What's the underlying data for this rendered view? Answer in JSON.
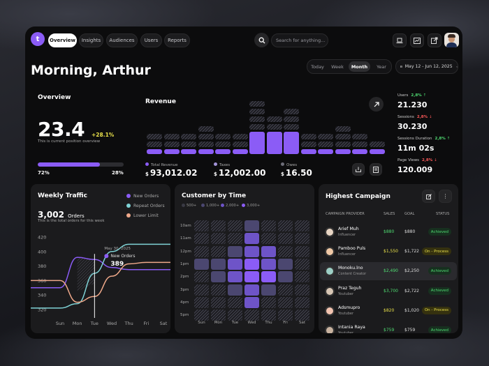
{
  "nav": {
    "logo": "t",
    "tabs": [
      "Overview",
      "Insights",
      "Audiences",
      "Users",
      "Reports"
    ],
    "search_placeholder": "Search for anything..."
  },
  "greeting": "Morning, Arthur",
  "range": {
    "options": [
      "Today",
      "Week",
      "Month",
      "Year"
    ],
    "selected": "Month",
    "dates": "May 12 - Jun 12, 2025"
  },
  "overview": {
    "title": "Overview",
    "value": "23.4",
    "change": "+28.1%",
    "caption": "This is current position overview",
    "left_pct": "72%",
    "right_pct": "28%",
    "progress": 0.72
  },
  "revenue": {
    "title": "Revenue",
    "stats": [
      {
        "label": "Total Revenue",
        "value": "93,012.02",
        "color": "#8b5cf6"
      },
      {
        "label": "Taxes",
        "value": "12,002.00",
        "color": "#a394d9"
      },
      {
        "label": "Owes",
        "value": "16.50",
        "color": "#6d6d78"
      }
    ],
    "columns": [
      [
        0,
        2,
        1
      ],
      [
        0,
        2,
        2
      ],
      [
        0,
        2,
        3
      ],
      [
        0,
        3,
        3
      ],
      [
        0,
        2,
        1
      ],
      [
        0,
        2,
        2
      ],
      [
        1,
        3,
        4
      ],
      [
        1,
        1,
        4
      ],
      [
        0,
        3,
        4
      ],
      [
        0,
        2,
        2
      ],
      [
        0,
        2,
        1
      ],
      [
        0,
        3,
        2
      ],
      [
        0,
        2,
        2
      ],
      [
        0,
        1,
        3
      ]
    ]
  },
  "side_metrics": [
    {
      "label": "Users",
      "change": "2,8%",
      "dir": "up",
      "value": "21.230"
    },
    {
      "label": "Sessions",
      "change": "2,8%",
      "dir": "down",
      "value": "30.230"
    },
    {
      "label": "Sessions Duration",
      "change": "2,8%",
      "dir": "up",
      "value": "11m 02s"
    },
    {
      "label": "Page Views",
      "change": "2,8%",
      "dir": "down",
      "value": "120.009"
    }
  ],
  "traffic": {
    "title": "Weekly Traffic",
    "orders": "3,002",
    "orders_unit": "Orders",
    "caption": "This is the total orders for this week",
    "legend": [
      {
        "label": "New Orders",
        "color": "#8b5cf6"
      },
      {
        "label": "Repeat Orders",
        "color": "#7fd3d6"
      },
      {
        "label": "Lower Limit",
        "color": "#f0a98a"
      }
    ],
    "tooltip": {
      "date": "May 30, 2025",
      "label": "New Orders",
      "value": "389"
    }
  },
  "chart_data": {
    "type": "line",
    "categories": [
      "Sun",
      "Mon",
      "Tue",
      "Wed",
      "Thu",
      "Fri",
      "Sat"
    ],
    "ylim": [
      320,
      420
    ],
    "yticks": [
      420,
      400,
      380,
      360,
      340,
      320
    ],
    "series": [
      {
        "name": "New Orders",
        "color": "#8b5cf6",
        "values": [
          350,
          392,
          389,
          378,
          375,
          375,
          375
        ]
      },
      {
        "name": "Repeat Orders",
        "color": "#7fd3d6",
        "values": [
          322,
          328,
          370,
          400,
          410,
          410,
          410
        ]
      },
      {
        "name": "Lower Limit",
        "color": "#f0a98a",
        "values": [
          360,
          330,
          338,
          366,
          383,
          385,
          385
        ]
      }
    ]
  },
  "customer": {
    "title": "Customer by Time",
    "legend": [
      {
        "label": "500+",
        "color": "#3a3a44"
      },
      {
        "label": "1,000+",
        "color": "#4b4770"
      },
      {
        "label": "2,000+",
        "color": "#6e54c8"
      },
      {
        "label": "3,000+",
        "color": "#8b5cf6"
      }
    ],
    "times": [
      "10am",
      "11am",
      "12pm",
      "1pm",
      "2pm",
      "3pm",
      "4pm",
      "5pm"
    ],
    "days": [
      "Sun",
      "Mon",
      "Tue",
      "Wed",
      "Thu",
      "Fri",
      "Sat"
    ],
    "grid": [
      [
        0,
        0,
        0,
        2,
        0,
        0,
        0
      ],
      [
        0,
        0,
        1,
        3,
        1,
        0,
        0
      ],
      [
        0,
        1,
        2,
        3,
        3,
        1,
        0
      ],
      [
        2,
        2,
        3,
        4,
        3,
        2,
        1
      ],
      [
        1,
        2,
        3,
        4,
        4,
        2,
        1
      ],
      [
        0,
        1,
        2,
        3,
        2,
        1,
        0
      ],
      [
        0,
        0,
        1,
        3,
        1,
        0,
        0
      ],
      [
        0,
        0,
        0,
        1,
        0,
        0,
        0
      ]
    ]
  },
  "campaign": {
    "title": "Highest Campaign",
    "headers": [
      "CAMPAIGN PROVIDER",
      "SALES",
      "GOAL",
      "STATUS"
    ],
    "rows": [
      {
        "name": "Arief Muh",
        "role": "Influencer",
        "sales": "$880",
        "goal": "$880",
        "status": "Achieved",
        "sales_color": "#4fdc72"
      },
      {
        "name": "Pamboo Puls",
        "role": "Influencer",
        "sales": "$1,550",
        "goal": "$1,722",
        "status": "On - Process",
        "sales_color": "#e8e04a"
      },
      {
        "name": "Monoku.lno",
        "role": "Content Creator",
        "sales": "$2,490",
        "goal": "$2,250",
        "status": "Achieved",
        "sales_color": "#4fdc72"
      },
      {
        "name": "Praz Teguh",
        "role": "Youtuber",
        "sales": "$3,700",
        "goal": "$2,722",
        "status": "Achieved",
        "sales_color": "#4fdc72"
      },
      {
        "name": "Adsmupro",
        "role": "Youtuber",
        "sales": "$820",
        "goal": "$1,020",
        "status": "On - Process",
        "sales_color": "#e8e04a"
      },
      {
        "name": "Intania Raya",
        "role": "Youtuber",
        "sales": "$759",
        "goal": "$759",
        "status": "Achieved",
        "sales_color": "#4fdc72"
      }
    ]
  }
}
